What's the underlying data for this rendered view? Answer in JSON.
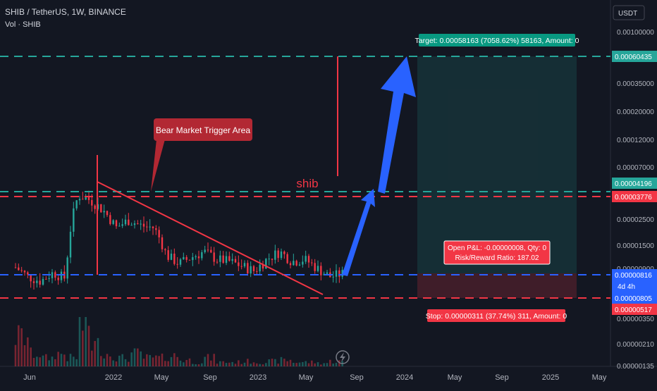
{
  "header": {
    "symbol_line": "SHIB / TetherUS, 1W, BINANCE",
    "volume_label": "Vol · SHIB"
  },
  "currency_badge": "USDT",
  "price_axis": {
    "scale": "log",
    "ticks": [
      "0.00100000",
      "0.00035000",
      "0.00020000",
      "0.00012000",
      "0.00007000",
      "0.00002500",
      "0.00001500",
      "0.00000900",
      "0.00000350",
      "0.00000210",
      "0.00000135"
    ]
  },
  "price_labels": [
    {
      "text": "0.00060435",
      "color": "#26a69a"
    },
    {
      "text": "0.00004196",
      "color": "#26a69a"
    },
    {
      "text": "0.00003776",
      "color": "#f23645"
    },
    {
      "text": "0.00000816",
      "color": "#2962ff",
      "countdown": "4d 4h"
    },
    {
      "text": "0.00000805",
      "color": "#2962ff"
    },
    {
      "text": "0.00000517",
      "color": "#f23645"
    }
  ],
  "time_axis": {
    "labels": [
      "Jun",
      "2022",
      "May",
      "Sep",
      "2023",
      "May",
      "Sep",
      "2024",
      "May",
      "Sep",
      "2025",
      "May"
    ]
  },
  "annotations": {
    "callout": "Bear Market Trigger Area",
    "chart_text": "shib",
    "target_label": "Target: 0.00058163 (7058.62%) 58163, Amount: 0",
    "pnl_line1": "Open P&L: -0.00000008, Qty: 0",
    "pnl_line2": "Risk/Reward Ratio: 187.02",
    "stop_label": "Stop: 0.00000311 (37.74%) 311, Amount: 0"
  },
  "colors": {
    "background": "#131722",
    "up": "#26a69a",
    "down": "#f23645",
    "blue": "#2962ff",
    "text": "#d1d4dc"
  },
  "chart_data": {
    "type": "candlestick",
    "symbol": "SHIB / TetherUS",
    "interval": "1W",
    "exchange": "BINANCE",
    "y_scale": "log",
    "ylim": [
      1.35e-06,
      0.001
    ],
    "price_series": {
      "x": [
        "2021-05",
        "2021-06",
        "2021-07",
        "2021-08",
        "2021-09",
        "2021-10",
        "2021-11",
        "2021-12",
        "2022-01",
        "2022-02",
        "2022-03",
        "2022-04",
        "2022-05",
        "2022-06",
        "2022-07",
        "2022-08",
        "2022-09",
        "2022-10",
        "2022-11",
        "2022-12",
        "2023-01",
        "2023-02",
        "2023-03",
        "2023-04",
        "2023-05",
        "2023-06",
        "2023-07"
      ],
      "close": [
        9.2e-06,
        7.5e-06,
        6.8e-06,
        8.2e-06,
        7.2e-06,
        4.5e-05,
        4e-05,
        3.2e-05,
        2.2e-05,
        2.6e-05,
        2.3e-05,
        2.2e-05,
        1.2e-05,
        1e-05,
        1.15e-05,
        1.3e-05,
        1.1e-05,
        1.05e-05,
        9.5e-06,
        8.5e-06,
        1.1e-05,
        1.3e-05,
        1.05e-05,
        1.1e-05,
        9e-06,
        7.5e-06,
        8e-06
      ]
    },
    "volume_series": {
      "x": [
        "2021-05",
        "2021-06",
        "2021-07",
        "2021-08",
        "2021-09",
        "2021-10",
        "2021-11",
        "2021-12",
        "2022-01",
        "2022-02",
        "2022-03",
        "2022-04",
        "2022-05",
        "2022-06",
        "2022-07",
        "2022-08",
        "2022-09",
        "2022-10",
        "2022-11",
        "2022-12",
        "2023-01",
        "2023-02",
        "2023-03",
        "2023-04",
        "2023-05",
        "2023-06",
        "2023-07"
      ],
      "relative": [
        0.7,
        0.3,
        0.2,
        0.3,
        0.2,
        1.0,
        0.5,
        0.3,
        0.2,
        0.3,
        0.2,
        0.2,
        0.25,
        0.15,
        0.1,
        0.2,
        0.1,
        0.1,
        0.12,
        0.1,
        0.12,
        0.15,
        0.1,
        0.1,
        0.08,
        0.12,
        0.1
      ]
    },
    "levels": {
      "target": 0.00060435,
      "upper_green": 4.196e-05,
      "upper_red": 3.776e-05,
      "entry": 8.16e-06,
      "last": 8.05e-06,
      "stop": 5.17e-06
    },
    "position": {
      "side": "long",
      "target": 0.00058163,
      "target_pct": 7058.62,
      "stop": 3.11e-06,
      "stop_pct": 37.74,
      "risk_reward": 187.02
    }
  }
}
